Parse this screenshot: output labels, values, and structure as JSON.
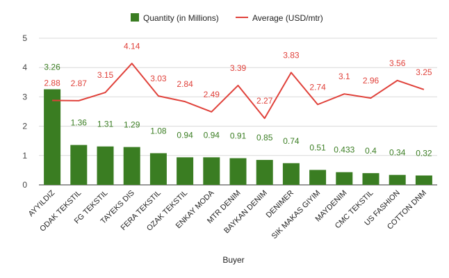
{
  "chart_data": {
    "type": "bar",
    "combo": "bar+line",
    "xlabel": "Buyer",
    "categories": [
      "AYYILDIZ",
      "ODAK TEKSTIL",
      "FG TEKSTIL",
      "TAYEKS DIS",
      "FERA TEKSTIL",
      "OZAK TEKSTIL",
      "ENKAY MODA",
      "MTR DENIM",
      "BAYKAN DENIM",
      "DENIMER",
      "SIK MAKAS GIYIM",
      "MAYDENIM",
      "CMC TEKSTIL",
      "US FASHION",
      "COTTON DNM"
    ],
    "series": [
      {
        "name": "Quantity (in Millions)",
        "type": "bar",
        "color": "#3a7d22",
        "values": [
          3.26,
          1.36,
          1.31,
          1.29,
          1.08,
          0.94,
          0.94,
          0.91,
          0.85,
          0.74,
          0.51,
          0.433,
          0.4,
          0.34,
          0.32
        ],
        "labels": [
          "3.26",
          "1.36",
          "1.31",
          "1.29",
          "1.08",
          "0.94",
          "0.94",
          "0.91",
          "0.85",
          "0.74",
          "0.51",
          "0.433",
          "0.4",
          "0.34",
          "0.32"
        ]
      },
      {
        "name": "Average (USD/mtr)",
        "type": "line",
        "color": "#e0413a",
        "values": [
          2.88,
          2.87,
          3.15,
          4.14,
          3.03,
          2.84,
          2.49,
          3.39,
          2.27,
          3.83,
          2.74,
          3.1,
          2.96,
          3.56,
          3.25
        ],
        "labels": [
          "2.88",
          "2.87",
          "3.15",
          "4.14",
          "3.03",
          "2.84",
          "2.49",
          "3.39",
          "2.27",
          "3.83",
          "2.74",
          "3.1",
          "2.96",
          "3.56",
          "3.25"
        ]
      }
    ],
    "ylim": [
      0,
      5
    ],
    "yticks": [
      "0",
      "1",
      "2",
      "3",
      "4",
      "5"
    ],
    "grid": true,
    "legend_position": "top"
  }
}
